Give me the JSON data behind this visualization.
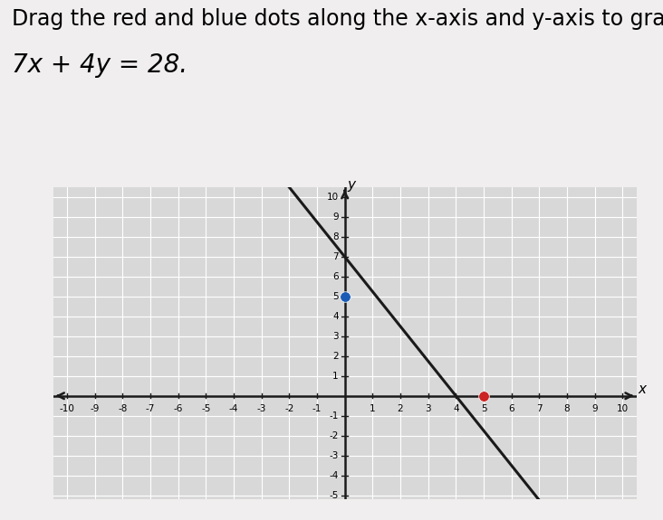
{
  "title_line1": "Drag the red and blue dots along the x-axis and y-axis to graph",
  "title_line2": "7x + 4y = 28.",
  "xlim": [
    -10.5,
    10.5
  ],
  "ylim": [
    -5.2,
    10.5
  ],
  "xtick_vals": [
    -10,
    -9,
    -8,
    -7,
    -6,
    -5,
    -4,
    -3,
    -2,
    -1,
    1,
    2,
    3,
    4,
    5,
    6,
    7,
    8,
    9,
    10
  ],
  "ytick_vals": [
    -5,
    -4,
    -3,
    -2,
    -1,
    1,
    2,
    3,
    4,
    5,
    6,
    7,
    8,
    9,
    10
  ],
  "blue_dot": [
    0,
    5
  ],
  "red_dot": [
    5,
    0
  ],
  "line_x_start": -4.5,
  "line_x_end": 9.5,
  "page_bg": "#f0eeee",
  "plot_bg": "#d8d8d8",
  "grid_color": "#ffffff",
  "line_color": "#1a1a1a",
  "blue_color": "#1a5cb5",
  "red_color": "#cc2222",
  "axis_color": "#1a1a1a",
  "dot_size": 70,
  "title_fontsize": 17,
  "equation_fontsize": 20
}
